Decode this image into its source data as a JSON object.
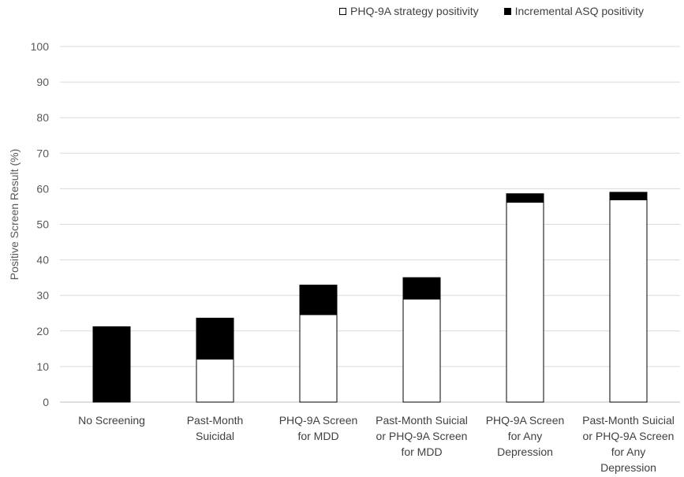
{
  "chart_data": {
    "type": "bar",
    "stacked": true,
    "ylabel": "Positive Screen Result (%)",
    "xlabel": "",
    "ylim": [
      0,
      100
    ],
    "yticks": [
      "0",
      "10",
      "20",
      "30",
      "40",
      "50",
      "60",
      "70",
      "80",
      "90",
      "100"
    ],
    "grid": true,
    "legend_position": "top-right",
    "categories": [
      [
        "No Screening"
      ],
      [
        "Past-Month",
        "Suicidal"
      ],
      [
        "PHQ-9A Screen",
        "for MDD"
      ],
      [
        "Past-Month Suicial",
        "or PHQ-9A Screen",
        "for MDD"
      ],
      [
        "PHQ-9A Screen",
        "for Any",
        "Depression"
      ],
      [
        "Past-Month Suicial",
        "or PHQ-9A Screen",
        "for Any",
        "Depression"
      ]
    ],
    "series": [
      {
        "name": "PHQ-9A strategy positivity",
        "color": "#ffffff",
        "values": [
          0,
          12.1,
          24.6,
          29.0,
          56.2,
          56.9
        ]
      },
      {
        "name": "Incremental ASQ positivity",
        "color": "#000000",
        "values": [
          21.2,
          11.5,
          8.3,
          6.0,
          2.4,
          2.1
        ]
      }
    ]
  }
}
